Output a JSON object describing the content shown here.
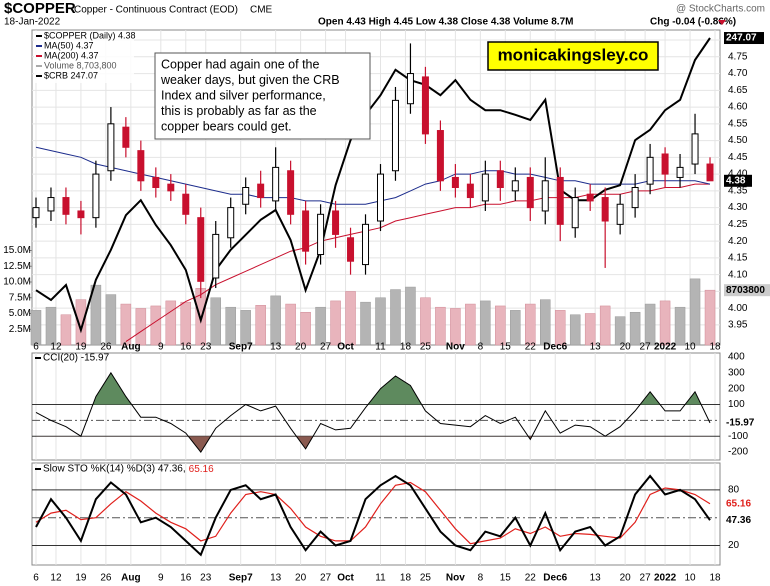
{
  "chart_data": [
    {
      "type": "candlestick",
      "title": "$COPPER",
      "subtitle": "Copper - Continuous Contract (EOD)",
      "exchange": "CME",
      "source": "@ StockCharts.com",
      "date": "18-Jan-2022",
      "quote": "Open 4.43  High 4.45  Low 4.38  Close 4.38  Volume 8.7M",
      "change": "Chg -0.04 (-0.86%)",
      "legend": [
        {
          "name": "$COPPER (Daily) 4.38",
          "color": "#000000"
        },
        {
          "name": "MA(50) 4.37",
          "color": "#1c2c8c"
        },
        {
          "name": "MA(200) 4.37",
          "color": "#c8102e"
        },
        {
          "name": "Volume 8,703,800",
          "color": "#aaaaaa"
        },
        {
          "name": "$CRB 247.07",
          "color": "#000000"
        }
      ],
      "annotation": [
        "Copper had again one of the",
        "weaker days, but given the CRB",
        "Index and silver performance,",
        "this is probably as far as the",
        "copper bears could get."
      ],
      "brand": "monicakingsley.co",
      "x": [
        0,
        3,
        6,
        9,
        12,
        15,
        18,
        21,
        24,
        27,
        30,
        33,
        36,
        39,
        42,
        45,
        48,
        51,
        54,
        57,
        60,
        63,
        66,
        69,
        72,
        75,
        78,
        81,
        84,
        87,
        90,
        93,
        96,
        99,
        102,
        105,
        108,
        111,
        114,
        117,
        120,
        123,
        126,
        129,
        132,
        135
      ],
      "xlim": [
        -0.8,
        137
      ],
      "xticks": [
        {
          "value": 0,
          "label": "6"
        },
        {
          "value": 4,
          "label": "12"
        },
        {
          "value": 9,
          "label": "19"
        },
        {
          "value": 14,
          "label": "26"
        },
        {
          "value": 19,
          "label": "Aug"
        },
        {
          "value": 25,
          "label": "9"
        },
        {
          "value": 30,
          "label": "16"
        },
        {
          "value": 34,
          "label": "23"
        },
        {
          "value": 41,
          "label": "Sep7"
        },
        {
          "value": 48,
          "label": "13"
        },
        {
          "value": 53,
          "label": "20"
        },
        {
          "value": 58,
          "label": "27"
        },
        {
          "value": 62,
          "label": "Oct"
        },
        {
          "value": 69,
          "label": "11"
        },
        {
          "value": 74,
          "label": "18"
        },
        {
          "value": 78,
          "label": "25"
        },
        {
          "value": 84,
          "label": "Nov"
        },
        {
          "value": 89,
          "label": "8"
        },
        {
          "value": 94,
          "label": "15"
        },
        {
          "value": 99,
          "label": "22"
        },
        {
          "value": 104,
          "label": "Dec6"
        },
        {
          "value": 112,
          "label": "13"
        },
        {
          "value": 118,
          "label": "20"
        },
        {
          "value": 122,
          "label": "27"
        },
        {
          "value": 126,
          "label": "2022"
        },
        {
          "value": 131,
          "label": "10"
        },
        {
          "value": 136,
          "label": "18"
        }
      ],
      "open": [
        4.27,
        4.29,
        4.33,
        4.29,
        4.27,
        4.41,
        4.54,
        4.47,
        4.39,
        4.37,
        4.34,
        4.27,
        4.09,
        4.21,
        4.31,
        4.37,
        4.32,
        4.41,
        4.29,
        4.16,
        4.29,
        4.21,
        4.13,
        4.26,
        4.41,
        4.61,
        4.69,
        4.53,
        4.39,
        4.37,
        4.32,
        4.41,
        4.35,
        4.39,
        4.29,
        4.39,
        4.24,
        4.34,
        4.33,
        4.25,
        4.3,
        4.37,
        4.46,
        4.39,
        4.43,
        4.43
      ],
      "high": [
        4.33,
        4.36,
        4.36,
        4.32,
        4.44,
        4.6,
        4.57,
        4.5,
        4.42,
        4.4,
        4.37,
        4.3,
        4.26,
        4.33,
        4.39,
        4.41,
        4.48,
        4.44,
        4.32,
        4.31,
        4.32,
        4.24,
        4.28,
        4.43,
        4.66,
        4.79,
        4.72,
        4.56,
        4.43,
        4.4,
        4.44,
        4.44,
        4.42,
        4.42,
        4.45,
        4.42,
        4.36,
        4.37,
        4.36,
        4.34,
        4.4,
        4.49,
        4.48,
        4.46,
        4.58,
        4.45
      ],
      "low": [
        4.24,
        4.26,
        4.25,
        4.22,
        4.24,
        4.38,
        4.45,
        4.35,
        4.33,
        4.32,
        4.25,
        4.03,
        4.06,
        4.18,
        4.28,
        4.3,
        4.29,
        4.25,
        4.13,
        4.13,
        4.18,
        4.1,
        4.1,
        4.23,
        4.38,
        4.58,
        4.49,
        4.35,
        4.33,
        4.3,
        4.29,
        4.32,
        4.32,
        4.26,
        4.25,
        4.2,
        4.21,
        4.29,
        4.12,
        4.22,
        4.27,
        4.34,
        4.36,
        4.36,
        4.4,
        4.38
      ],
      "close": [
        4.3,
        4.33,
        4.28,
        4.27,
        4.4,
        4.55,
        4.48,
        4.38,
        4.36,
        4.35,
        4.28,
        4.08,
        4.22,
        4.3,
        4.36,
        4.33,
        4.42,
        4.28,
        4.17,
        4.28,
        4.22,
        4.14,
        4.25,
        4.4,
        4.62,
        4.7,
        4.52,
        4.38,
        4.36,
        4.33,
        4.4,
        4.36,
        4.38,
        4.3,
        4.38,
        4.25,
        4.33,
        4.32,
        4.26,
        4.31,
        4.36,
        4.45,
        4.4,
        4.42,
        4.52,
        4.38
      ],
      "ma50": [
        4.48,
        4.47,
        4.46,
        4.45,
        4.43,
        4.42,
        4.41,
        4.4,
        4.39,
        4.38,
        4.37,
        4.36,
        4.35,
        4.34,
        4.34,
        4.33,
        4.33,
        4.33,
        4.32,
        4.32,
        4.31,
        4.31,
        4.31,
        4.32,
        4.33,
        4.35,
        4.37,
        4.38,
        4.4,
        4.4,
        4.41,
        4.41,
        4.4,
        4.4,
        4.39,
        4.38,
        4.38,
        4.37,
        4.37,
        4.37,
        4.37,
        4.38,
        4.38,
        4.38,
        4.38,
        4.37
      ],
      "ma200": [
        null,
        null,
        null,
        null,
        null,
        null,
        3.9,
        3.93,
        3.96,
        3.99,
        4.02,
        4.04,
        4.07,
        4.09,
        4.11,
        4.13,
        4.15,
        4.17,
        4.18,
        4.2,
        4.21,
        4.22,
        4.23,
        4.24,
        4.26,
        4.27,
        4.28,
        4.29,
        4.3,
        4.3,
        4.31,
        4.31,
        4.32,
        4.32,
        4.33,
        4.33,
        4.33,
        4.34,
        4.34,
        4.34,
        4.35,
        4.35,
        4.36,
        4.36,
        4.37,
        4.37
      ],
      "crb": [
        208.4,
        206.9,
        209.2,
        202.3,
        210.0,
        214.6,
        219.9,
        222.2,
        218.4,
        215.3,
        211.5,
        203.8,
        211.5,
        214.6,
        216.9,
        219.2,
        220.7,
        216.1,
        208.4,
        214.6,
        224.5,
        231.4,
        235.3,
        238.3,
        242.2,
        240.6,
        239.9,
        238.3,
        240.6,
        237.6,
        236.0,
        236.0,
        235.3,
        234.5,
        237.6,
        223.8,
        222.2,
        222.2,
        223.8,
        224.5,
        231.4,
        233.0,
        236.0,
        237.6,
        243.7,
        247.07
      ],
      "volume": [
        5500000,
        6000000,
        4800000,
        7200000,
        9500000,
        8000000,
        6500000,
        5800000,
        6200000,
        7000000,
        6800000,
        9000000,
        7500000,
        6000000,
        5500000,
        6300000,
        7800000,
        6500000,
        5200000,
        6000000,
        7000000,
        8500000,
        6800000,
        7500000,
        8800000,
        9200000,
        7500000,
        6000000,
        5800000,
        6500000,
        7000000,
        6200000,
        5500000,
        6500000,
        7200000,
        5500000,
        4800000,
        5000000,
        6200000,
        4500000,
        5200000,
        6500000,
        7000000,
        6000000,
        10500000,
        8703800
      ],
      "ylim": [
        3.89,
        4.83
      ],
      "yticks": [
        3.95,
        {
          "value": 4.0,
          "label": "4.00"
        },
        4.05,
        {
          "value": 4.1,
          "label": "4.10"
        },
        4.15,
        {
          "value": 4.2,
          "label": "4.20"
        },
        4.25,
        {
          "value": 4.3,
          "label": "4.30"
        },
        4.35,
        {
          "value": 4.4,
          "label": "4.40"
        },
        4.45,
        {
          "value": 4.5,
          "label": "4.50"
        },
        4.55,
        {
          "value": 4.6,
          "label": "4.60"
        },
        4.65,
        {
          "value": 4.7,
          "label": "4.70"
        },
        4.75,
        {
          "value": 4.8,
          "label": "4.80"
        }
      ],
      "y2lim": [
        200,
        248.3
      ],
      "volume_ylim": [
        0,
        50000000
      ],
      "volume_ticks": [
        {
          "value": 2500000,
          "label": "2.5M"
        },
        {
          "value": 5000000,
          "label": "5.0M"
        },
        {
          "value": 7500000,
          "label": "7.5M"
        },
        {
          "value": 10000000,
          "label": "10.0M"
        },
        {
          "value": 12500000,
          "label": "12.5M"
        },
        {
          "value": 15000000,
          "label": "15.0M"
        }
      ],
      "up_color": "#000000",
      "down_color": "#c8102e",
      "volume_up_color": "#b4b4b4",
      "volume_down_color": "#e8b4bc",
      "grid": true
    },
    {
      "type": "line",
      "title": "CCI(20) -15.97",
      "values": [
        50,
        0,
        -40,
        -100,
        150,
        300,
        150,
        20,
        20,
        -20,
        -80,
        -200,
        -50,
        30,
        100,
        60,
        90,
        -50,
        -180,
        -20,
        -60,
        -50,
        80,
        200,
        280,
        220,
        60,
        -20,
        -30,
        -40,
        30,
        -20,
        20,
        -120,
        60,
        -80,
        -30,
        -40,
        -100,
        -40,
        60,
        180,
        60,
        60,
        180,
        -15.97
      ],
      "color": "#000000",
      "ylim": [
        -250,
        425
      ],
      "yticks": [
        -200,
        -100,
        100,
        200,
        300,
        400
      ],
      "center_line": 0,
      "bands": [
        -100,
        100
      ],
      "upper_fill": "#5e8a5e",
      "lower_fill": "#8a5a50"
    },
    {
      "type": "line",
      "title": "Slow STO %K(14) %D(3) 47.36,",
      "series": [
        {
          "name": "%K(14)",
          "color": "#000000",
          "values": [
            40,
            70,
            50,
            25,
            70,
            88,
            75,
            45,
            50,
            40,
            25,
            10,
            50,
            80,
            85,
            70,
            75,
            40,
            15,
            35,
            20,
            25,
            70,
            85,
            95,
            85,
            60,
            35,
            20,
            15,
            35,
            30,
            50,
            20,
            55,
            15,
            35,
            40,
            20,
            30,
            75,
            95,
            75,
            80,
            70,
            47.36
          ]
        },
        {
          "name": "%D(3)",
          "color": "#e0201c",
          "values": [
            45,
            55,
            58,
            48,
            50,
            65,
            78,
            68,
            55,
            45,
            38,
            25,
            30,
            55,
            75,
            78,
            75,
            60,
            40,
            30,
            25,
            25,
            40,
            65,
            85,
            88,
            78,
            58,
            38,
            22,
            25,
            28,
            38,
            33,
            40,
            30,
            33,
            32,
            30,
            28,
            45,
            75,
            82,
            80,
            75,
            65.16
          ]
        }
      ],
      "ylim": [
        -1,
        109
      ],
      "yticks": [
        20,
        80
      ],
      "center_line": 50
    }
  ]
}
